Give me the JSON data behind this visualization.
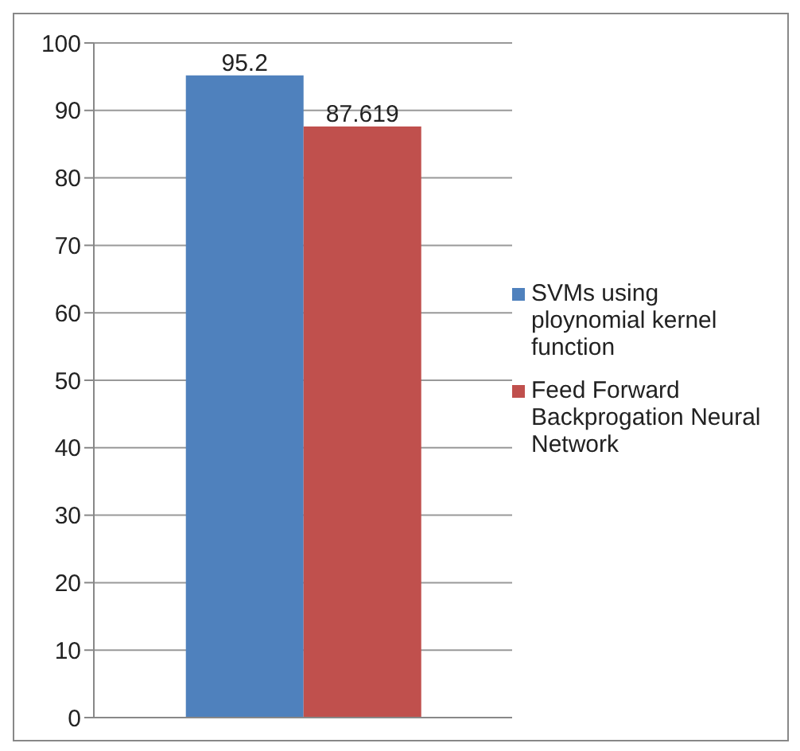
{
  "chart_data": {
    "type": "bar",
    "categories": [
      null
    ],
    "series": [
      {
        "name": "SVMs using ploynomial kernel function",
        "color": "#4f81bd",
        "values": [
          95.2
        ]
      },
      {
        "name": "Feed Forward Backprogation Neural Network",
        "color": "#c0504d",
        "values": [
          87.619
        ]
      }
    ],
    "ylim": [
      0,
      100
    ],
    "yticks": [
      0,
      10,
      20,
      30,
      40,
      50,
      60,
      70,
      80,
      90,
      100
    ],
    "grid": "y",
    "legend": "right",
    "data_labels": true
  }
}
